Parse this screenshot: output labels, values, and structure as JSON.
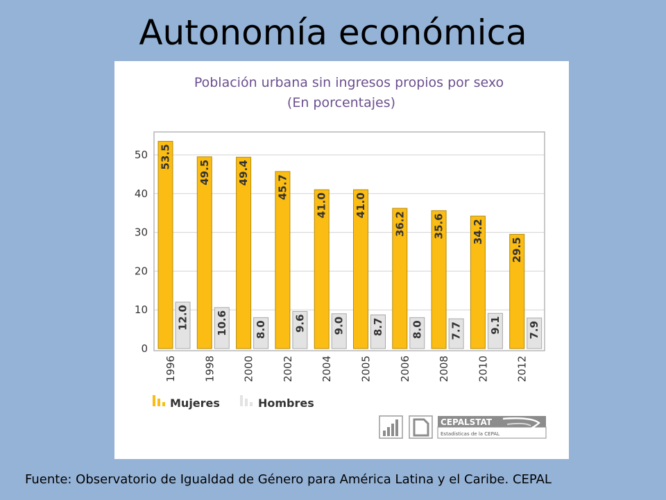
{
  "slide": {
    "title": "Autonomía económica",
    "footer": "Fuente: Observatorio de Igualdad de Género para América Latina y el Caribe. CEPAL"
  },
  "colors": {
    "background": "#95b3d7",
    "mujeres": "#fbbd13",
    "hombres": "#e3e3e3"
  },
  "chart_data": {
    "type": "bar",
    "title": "Población urbana sin ingresos propios por sexo",
    "subtitle": "(En porcentajes)",
    "categories": [
      "1996",
      "1998",
      "2000",
      "2002",
      "2004",
      "2005",
      "2006",
      "2008",
      "2010",
      "2012"
    ],
    "series": [
      {
        "name": "Mujeres",
        "values": [
          53.5,
          49.5,
          49.4,
          45.7,
          41.0,
          41.0,
          36.2,
          35.6,
          34.2,
          29.5
        ]
      },
      {
        "name": "Hombres",
        "values": [
          12.0,
          10.6,
          8.0,
          9.6,
          9.0,
          8.7,
          8.0,
          7.7,
          9.1,
          7.9
        ]
      }
    ],
    "ylim": [
      0,
      55
    ],
    "yticks": [
      0,
      10,
      20,
      30,
      40,
      50
    ],
    "grid": true,
    "legend_position": "bottom-left"
  },
  "branding": {
    "logo_name": "CEPALSTAT",
    "logo_tagline": "Estadísticas de la CEPAL"
  }
}
